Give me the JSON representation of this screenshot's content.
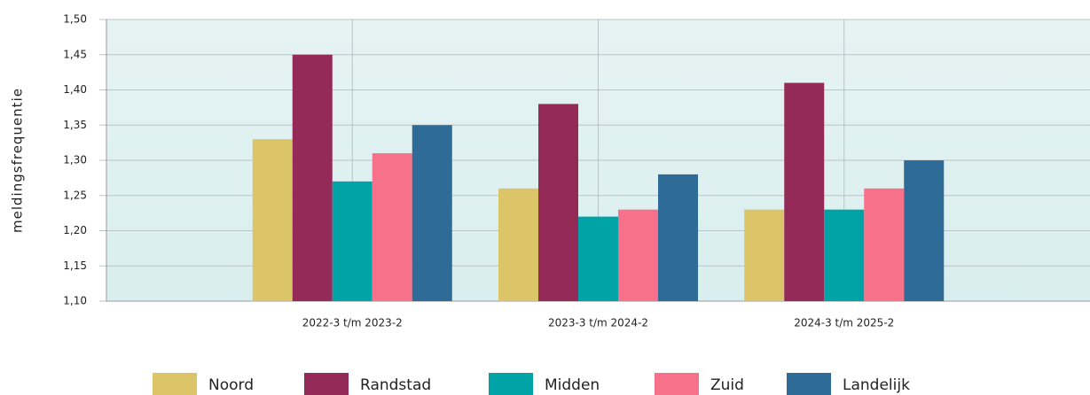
{
  "chart_data": {
    "type": "bar",
    "ylabel": "meldingsfrequentie",
    "categories": [
      "2022-3 t/m 2023-2",
      "2023-3 t/m 2024-2",
      "2024-3 t/m 2025-2"
    ],
    "series": [
      {
        "name": "Noord",
        "color": "#dcc469",
        "values": [
          1.33,
          1.26,
          1.23
        ]
      },
      {
        "name": "Randstad",
        "color": "#932a58",
        "values": [
          1.45,
          1.38,
          1.41
        ]
      },
      {
        "name": "Midden",
        "color": "#00a3a6",
        "values": [
          1.27,
          1.22,
          1.23
        ]
      },
      {
        "name": "Zuid",
        "color": "#f7718a",
        "values": [
          1.31,
          1.23,
          1.26
        ]
      },
      {
        "name": "Landelijk",
        "color": "#2e6b96",
        "values": [
          1.35,
          1.28,
          1.3
        ]
      }
    ],
    "ylim": [
      1.1,
      1.5
    ],
    "yticks": [
      {
        "value": 1.1,
        "label": "1,10"
      },
      {
        "value": 1.15,
        "label": "1,15"
      },
      {
        "value": 1.2,
        "label": "1,20"
      },
      {
        "value": 1.25,
        "label": "1,25"
      },
      {
        "value": 1.3,
        "label": "1,30"
      },
      {
        "value": 1.35,
        "label": "1,35"
      },
      {
        "value": 1.4,
        "label": "1,40"
      },
      {
        "value": 1.45,
        "label": "1,45"
      },
      {
        "value": 1.5,
        "label": "1,50"
      }
    ],
    "grid": true,
    "legend": "bottom"
  }
}
